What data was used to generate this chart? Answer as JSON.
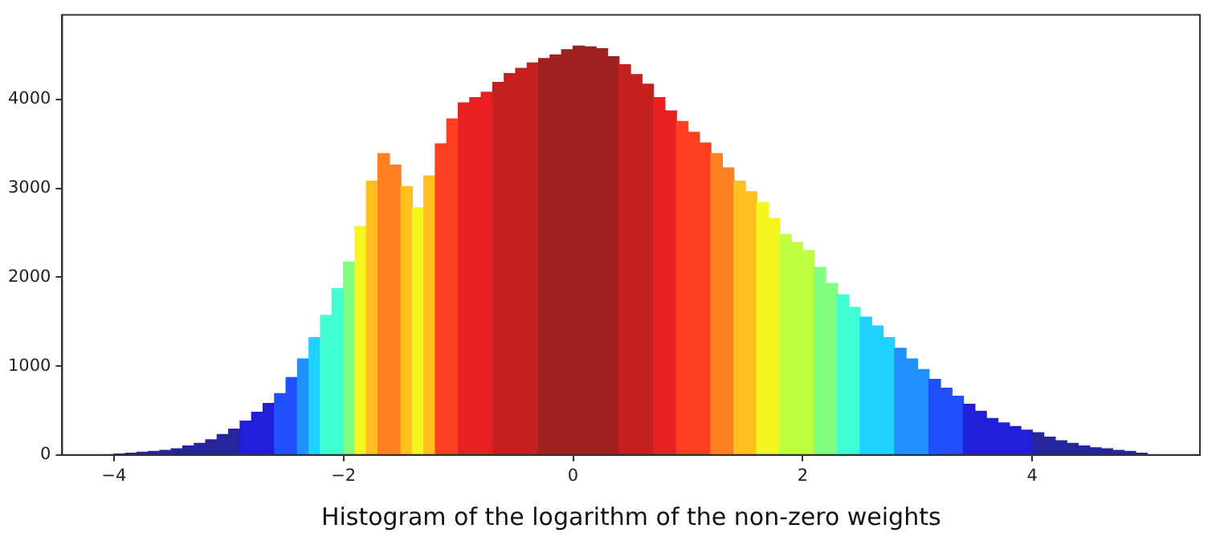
{
  "chart_data": {
    "type": "histogram",
    "xlabel": "Histogram of the logarithm of the non-zero weights",
    "bins": [
      -4.0,
      -3.9,
      -3.8,
      -3.7,
      -3.6,
      -3.5,
      -3.4,
      -3.3,
      -3.2,
      -3.1,
      -3.0,
      -2.9,
      -2.8,
      -2.7,
      -2.6,
      -2.5,
      -2.4,
      -2.3,
      -2.2,
      -2.1,
      -2.0,
      -1.9,
      -1.8,
      -1.7,
      -1.6,
      -1.5,
      -1.4,
      -1.3,
      -1.2,
      -1.1,
      -1.0,
      -0.9,
      -0.8,
      -0.7,
      -0.6,
      -0.5,
      -0.4,
      -0.3,
      -0.2,
      -0.1,
      0.0,
      0.1,
      0.2,
      0.3,
      0.4,
      0.5,
      0.6,
      0.7,
      0.8,
      0.9,
      1.0,
      1.1,
      1.2,
      1.3,
      1.4,
      1.5,
      1.6,
      1.7,
      1.8,
      1.9,
      2.0,
      2.1,
      2.2,
      2.3,
      2.4,
      2.5,
      2.6,
      2.7,
      2.8,
      2.9,
      3.0,
      3.1,
      3.2,
      3.3,
      3.4,
      3.5,
      3.6,
      3.7,
      3.8,
      3.9,
      4.0,
      4.1,
      4.2,
      4.3,
      4.4,
      4.5,
      4.6,
      4.7,
      4.8,
      4.9,
      5.0
    ],
    "values": [
      10,
      20,
      30,
      40,
      50,
      70,
      100,
      130,
      170,
      230,
      290,
      380,
      480,
      580,
      690,
      870,
      1080,
      1320,
      1570,
      1870,
      2170,
      2570,
      3080,
      3390,
      3260,
      3020,
      2780,
      3140,
      3500,
      3780,
      3960,
      4020,
      4080,
      4190,
      4290,
      4350,
      4410,
      4460,
      4500,
      4560,
      4600,
      4590,
      4570,
      4480,
      4390,
      4280,
      4170,
      4020,
      3870,
      3750,
      3630,
      3510,
      3390,
      3230,
      3080,
      2960,
      2840,
      2660,
      2480,
      2390,
      2300,
      2110,
      1930,
      1800,
      1660,
      1550,
      1450,
      1320,
      1200,
      1080,
      960,
      850,
      750,
      660,
      570,
      490,
      410,
      360,
      320,
      280,
      250,
      200,
      160,
      130,
      100,
      80,
      70,
      50,
      40,
      20
    ],
    "colors": [
      "#25259e",
      "#25259e",
      "#25259e",
      "#25259e",
      "#25259e",
      "#25259e",
      "#25259e",
      "#25259e",
      "#25259e",
      "#25259e",
      "#25259e",
      "#2020d8",
      "#2020d8",
      "#2020d8",
      "#2050ff",
      "#2050ff",
      "#2090ff",
      "#20d0ff",
      "#40ffd0",
      "#40ffd0",
      "#80ff80",
      "#f5f520",
      "#ffc020",
      "#ff8020",
      "#ff8020",
      "#ffc020",
      "#f5f520",
      "#ffc020",
      "#ff4020",
      "#ff4020",
      "#e82020",
      "#e82020",
      "#e82020",
      "#c42020",
      "#c42020",
      "#c42020",
      "#c42020",
      "#a02020",
      "#a02020",
      "#a02020",
      "#a02020",
      "#a02020",
      "#a02020",
      "#a02020",
      "#c42020",
      "#c42020",
      "#c42020",
      "#e82020",
      "#e82020",
      "#ff4020",
      "#ff4020",
      "#ff4020",
      "#ff8020",
      "#ff8020",
      "#ffc020",
      "#ffc020",
      "#f5f520",
      "#f5f520",
      "#c0ff40",
      "#c0ff40",
      "#c0ff40",
      "#80ff80",
      "#80ff80",
      "#40ffd0",
      "#40ffd0",
      "#20d0ff",
      "#20d0ff",
      "#20d0ff",
      "#2090ff",
      "#2090ff",
      "#2090ff",
      "#2050ff",
      "#2050ff",
      "#2050ff",
      "#2020d8",
      "#2020d8",
      "#2020d8",
      "#2020d8",
      "#2020d8",
      "#2020d8",
      "#25259e",
      "#25259e",
      "#25259e",
      "#25259e",
      "#25259e",
      "#25259e",
      "#25259e",
      "#25259e",
      "#25259e",
      "#25259e"
    ],
    "xlim": [
      -4.45,
      5.46
    ],
    "ylim": [
      0,
      4950
    ],
    "xticks": [
      -4,
      -2,
      0,
      2,
      4
    ],
    "yticks": [
      0,
      1000,
      2000,
      3000,
      4000
    ],
    "grid": false,
    "legend": false
  }
}
